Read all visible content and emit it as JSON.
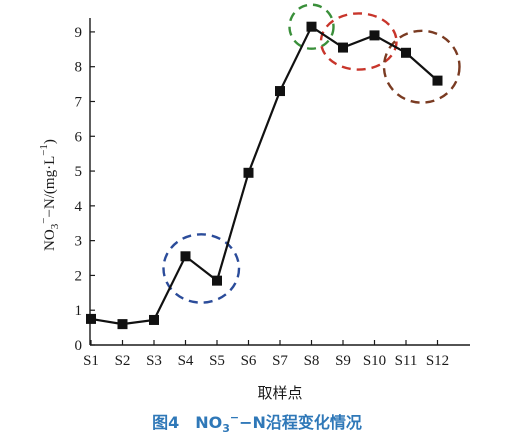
{
  "chart_data": {
    "type": "line",
    "categories": [
      "S1",
      "S2",
      "S3",
      "S4",
      "S5",
      "S6",
      "S7",
      "S8",
      "S9",
      "S10",
      "S11",
      "S12"
    ],
    "series": [
      {
        "values": [
          0.75,
          0.6,
          0.72,
          2.55,
          1.85,
          4.95,
          7.3,
          9.15,
          8.55,
          8.9,
          8.4,
          7.6
        ]
      }
    ],
    "xlabel": "取样点",
    "ylabel": {
      "prefix": "NO",
      "sub": "3",
      "sup": "−",
      "mid": "−N/(mg·L",
      "sup2": "−1",
      "suffix": ")"
    },
    "ylim": [
      0,
      9.4
    ],
    "yticks": [
      0,
      1,
      2,
      3,
      4,
      5,
      6,
      7,
      8,
      9
    ],
    "caption": {
      "prefix": "图4　NO",
      "sub": "3",
      "sup": "−",
      "suffix": "−N沿程变化情况"
    },
    "highlights": [
      {
        "from": "S4",
        "to": "S5",
        "color": "#2b4c9a"
      },
      {
        "from": "S8",
        "to": "S8",
        "color": "#3a8f3a"
      },
      {
        "from": "S9",
        "to": "S10",
        "color": "#c8352b"
      },
      {
        "from": "S11",
        "to": "S12",
        "color": "#7a3b22"
      }
    ]
  }
}
